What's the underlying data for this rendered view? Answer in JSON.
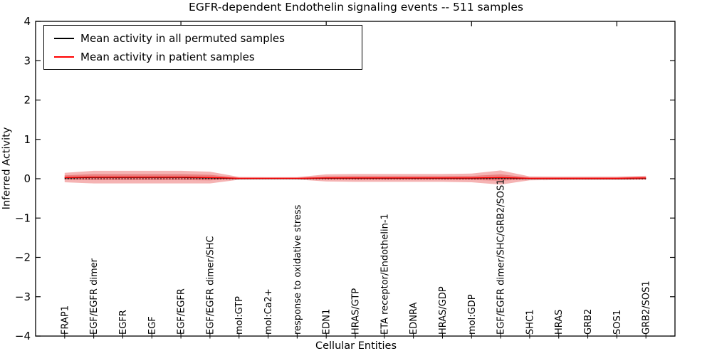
{
  "title": "EGFR-dependent Endothelin signaling events -- 511 samples",
  "axes": {
    "xlabel": "Cellular Entities",
    "ylabel": "Inferred Activity",
    "ytick_labels": [
      "4",
      "3",
      "2",
      "1",
      "0",
      "−1",
      "−2",
      "−3",
      "−4"
    ],
    "ytick_values": [
      4,
      3,
      2,
      1,
      0,
      -1,
      -2,
      -3,
      -4
    ]
  },
  "legend": {
    "entries": [
      {
        "label": "Mean activity in all permuted samples",
        "color": "#000000"
      },
      {
        "label": "Mean activity in patient samples",
        "color": "#ff0000"
      }
    ]
  },
  "chart_data": {
    "type": "line",
    "title": "EGFR-dependent Endothelin signaling events -- 511 samples",
    "xlabel": "Cellular Entities",
    "ylabel": "Inferred Activity",
    "ylim": [
      -4,
      4
    ],
    "xlim": [
      0,
      22
    ],
    "grid": false,
    "legend_position": "upper left",
    "categories": [
      "FRAP1",
      "EGF/EGFR dimer",
      "EGFR",
      "EGF",
      "EGF/EGFR",
      "EGF/EGFR dimer/SHC",
      "mol:GTP",
      "mol:Ca2+",
      "response to oxidative stress",
      "EDN1",
      "HRAS/GTP",
      "ETA receptor/Endothelin-1",
      "EDNRA",
      "HRAS/GDP",
      "mol:GDP",
      "EGF/EGFR dimer/SHC/GRB2/SOS1",
      "SHC1",
      "HRAS",
      "GRB2",
      "SOS1",
      "GRB2/SOS1"
    ],
    "x_major_ticks": [
      5,
      10,
      15,
      20
    ],
    "series": [
      {
        "name": "Mean activity in all permuted samples",
        "color": "#000000",
        "linestyle": "solid",
        "values": [
          0.02,
          0.03,
          0.03,
          0.03,
          0.03,
          0.02,
          0.0,
          0.0,
          0.0,
          0.01,
          0.01,
          0.01,
          0.01,
          0.01,
          0.01,
          0.02,
          0.0,
          0.0,
          0.0,
          0.0,
          0.01
        ]
      },
      {
        "name": "Mean activity in patient samples",
        "color": "#ff0000",
        "linestyle": "solid",
        "values": [
          0.03,
          0.04,
          0.04,
          0.04,
          0.04,
          0.03,
          0.01,
          0.01,
          0.01,
          0.02,
          0.02,
          0.02,
          0.02,
          0.02,
          0.02,
          0.03,
          0.01,
          0.01,
          0.01,
          0.01,
          0.02
        ]
      }
    ],
    "reference_line": {
      "y": 0,
      "color": "#000000",
      "linestyle": "dotted"
    },
    "bands": [
      {
        "name": "patient-band-outer",
        "color": "#f5b3b3",
        "half_widths": [
          0.12,
          0.16,
          0.16,
          0.16,
          0.16,
          0.15,
          0.035,
          0.03,
          0.03,
          0.09,
          0.1,
          0.1,
          0.1,
          0.1,
          0.11,
          0.18,
          0.05,
          0.045,
          0.045,
          0.045,
          0.055
        ]
      },
      {
        "name": "patient-band-inner",
        "color": "#ea8181",
        "half_widths": [
          0.055,
          0.075,
          0.075,
          0.075,
          0.075,
          0.07,
          0.015,
          0.012,
          0.012,
          0.04,
          0.045,
          0.045,
          0.045,
          0.045,
          0.05,
          0.08,
          0.022,
          0.02,
          0.02,
          0.02,
          0.025
        ]
      }
    ]
  }
}
